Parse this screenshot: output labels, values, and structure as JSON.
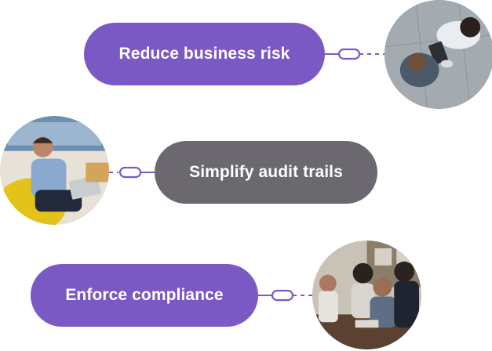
{
  "colors": {
    "accent": "#7a59c4",
    "gray": "#6c686f",
    "connector": "#7a59c4"
  },
  "items": [
    {
      "label": "Reduce business risk",
      "style": "purple",
      "photo": "two-people-tablet-overhead-photo"
    },
    {
      "label": "Simplify audit trails",
      "style": "gray",
      "photo": "man-with-laptop-photo"
    },
    {
      "label": "Enforce compliance",
      "style": "purple",
      "photo": "team-meeting-photo"
    }
  ]
}
